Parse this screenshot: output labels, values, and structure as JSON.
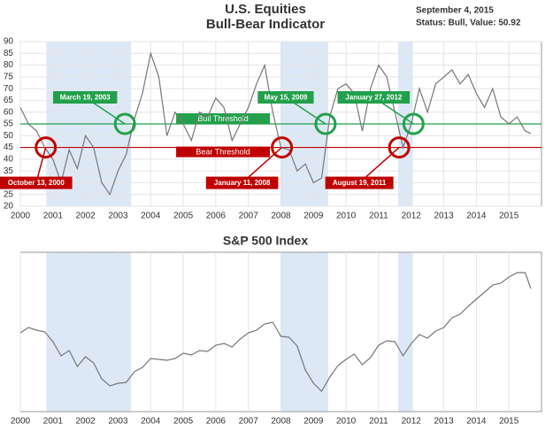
{
  "chart_data": [
    {
      "type": "line",
      "title": "U.S. Equities",
      "subtitle": "Bull-Bear Indicator",
      "date": "September 4, 2015",
      "status": "Status: Bull, Value: 50.92",
      "xlim": [
        2000,
        2016
      ],
      "xticks": [
        2000,
        2001,
        2002,
        2003,
        2004,
        2005,
        2006,
        2007,
        2008,
        2009,
        2010,
        2011,
        2012,
        2013,
        2014,
        2015
      ],
      "ylim": [
        20,
        90
      ],
      "yticks": [
        20,
        25,
        30,
        35,
        40,
        45,
        50,
        55,
        60,
        65,
        70,
        75,
        80,
        85,
        90
      ],
      "grid": true,
      "color": "#777777",
      "x": [
        2000,
        2000.25,
        2000.5,
        2000.75,
        2001,
        2001.25,
        2001.5,
        2001.75,
        2002,
        2002.25,
        2002.5,
        2002.75,
        2003,
        2003.25,
        2003.5,
        2003.75,
        2004,
        2004.25,
        2004.5,
        2004.75,
        2005,
        2005.25,
        2005.5,
        2005.75,
        2006,
        2006.25,
        2006.5,
        2006.75,
        2007,
        2007.25,
        2007.5,
        2007.75,
        2008,
        2008.25,
        2008.5,
        2008.75,
        2009,
        2009.25,
        2009.5,
        2009.75,
        2010,
        2010.25,
        2010.5,
        2010.75,
        2011,
        2011.25,
        2011.5,
        2011.75,
        2012,
        2012.25,
        2012.5,
        2012.75,
        2013,
        2013.25,
        2013.5,
        2013.75,
        2014,
        2014.25,
        2014.5,
        2014.75,
        2015,
        2015.25,
        2015.5,
        2015.67
      ],
      "values": [
        62,
        55,
        52,
        45,
        40,
        30,
        44,
        36,
        50,
        45,
        30,
        25,
        35,
        42,
        57,
        68,
        85,
        75,
        50,
        60,
        55,
        48,
        60,
        58,
        66,
        62,
        48,
        55,
        62,
        72,
        80,
        60,
        45,
        44,
        35,
        38,
        30,
        32,
        58,
        70,
        72,
        68,
        52,
        70,
        80,
        75,
        60,
        45,
        55,
        70,
        60,
        72,
        75,
        78,
        72,
        76,
        68,
        62,
        70,
        58,
        55,
        58,
        52,
        50.92
      ],
      "bands": [
        [
          2000.8,
          2003.4
        ],
        [
          2008.0,
          2009.45
        ],
        [
          2011.6,
          2012.05
        ]
      ],
      "band_color": "#dde8f6",
      "thresholds": [
        {
          "label": "Bull Threshold",
          "value": 55,
          "color": "#22a04b"
        },
        {
          "label": "Bear Threshold",
          "value": 45,
          "color": "#c00000"
        }
      ],
      "annotations": [
        {
          "label": "October 13, 2000",
          "x": 2000.78,
          "y": 45,
          "color": "#c00000",
          "side": "below"
        },
        {
          "label": "March 19, 2003",
          "x": 2003.21,
          "y": 55,
          "color": "#22a04b",
          "side": "above"
        },
        {
          "label": "January 11, 2008",
          "x": 2008.03,
          "y": 45,
          "color": "#c00000",
          "side": "below"
        },
        {
          "label": "May 15, 2009",
          "x": 2009.37,
          "y": 55,
          "color": "#22a04b",
          "side": "above"
        },
        {
          "label": "August 19, 2011",
          "x": 2011.63,
          "y": 45,
          "color": "#c00000",
          "side": "below"
        },
        {
          "label": "January 27, 2012",
          "x": 2012.07,
          "y": 55,
          "color": "#22a04b",
          "side": "above"
        }
      ]
    },
    {
      "type": "line",
      "title": "S&P 500 Index",
      "xlim": [
        2000,
        2016
      ],
      "xticks": [
        2000,
        2001,
        2002,
        2003,
        2004,
        2005,
        2006,
        2007,
        2008,
        2009,
        2010,
        2011,
        2012,
        2013,
        2014,
        2015
      ],
      "ylim": [
        530,
        2330
      ],
      "color": "#777777",
      "grid": true,
      "x": [
        2000,
        2000.25,
        2000.5,
        2000.75,
        2001,
        2001.25,
        2001.5,
        2001.75,
        2002,
        2002.25,
        2002.5,
        2002.75,
        2003,
        2003.25,
        2003.5,
        2003.75,
        2004,
        2004.25,
        2004.5,
        2004.75,
        2005,
        2005.25,
        2005.5,
        2005.75,
        2006,
        2006.25,
        2006.5,
        2006.75,
        2007,
        2007.25,
        2007.5,
        2007.75,
        2008,
        2008.25,
        2008.5,
        2008.75,
        2009,
        2009.25,
        2009.5,
        2009.75,
        2010,
        2010.25,
        2010.5,
        2010.75,
        2011,
        2011.25,
        2011.5,
        2011.75,
        2012,
        2012.25,
        2012.5,
        2012.75,
        2013,
        2013.25,
        2013.5,
        2013.75,
        2014,
        2014.25,
        2014.5,
        2014.75,
        2015,
        2015.25,
        2015.5,
        2015.67
      ],
      "values": [
        1420,
        1480,
        1450,
        1430,
        1320,
        1160,
        1220,
        1040,
        1150,
        1080,
        900,
        820,
        850,
        860,
        980,
        1030,
        1130,
        1120,
        1110,
        1130,
        1190,
        1170,
        1220,
        1210,
        1280,
        1300,
        1260,
        1350,
        1420,
        1450,
        1520,
        1540,
        1380,
        1370,
        1270,
        1000,
        850,
        760,
        920,
        1050,
        1120,
        1180,
        1060,
        1140,
        1280,
        1330,
        1320,
        1160,
        1300,
        1400,
        1360,
        1440,
        1480,
        1590,
        1630,
        1720,
        1800,
        1880,
        1960,
        1980,
        2050,
        2100,
        2100,
        1920
      ],
      "bands": [
        [
          2000.8,
          2003.4
        ],
        [
          2008.0,
          2009.45
        ],
        [
          2011.6,
          2012.05
        ]
      ],
      "band_color": "#dde8f6"
    }
  ]
}
